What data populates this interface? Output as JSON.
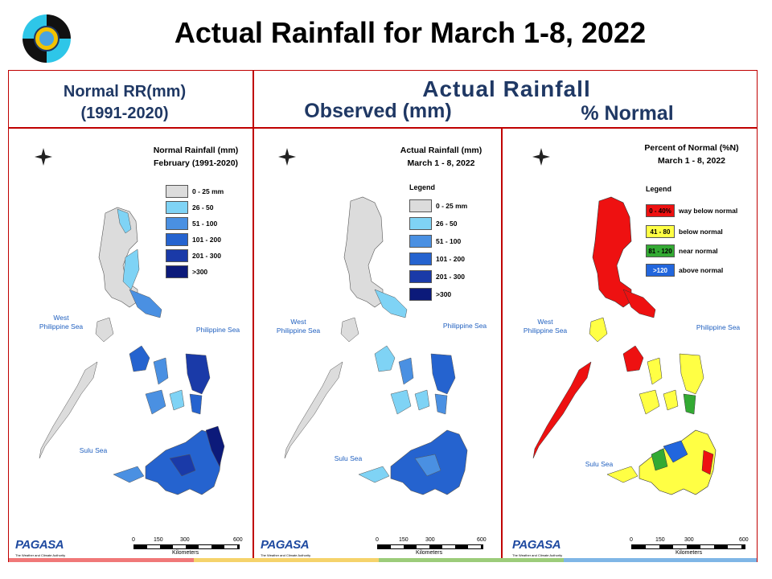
{
  "slide": {
    "title": "Actual Rainfall for March 1-8, 2022",
    "header_left_line1": "Normal RR(mm)",
    "header_left_line2": "(1991-2020)",
    "header_actual": "Actual Rainfall",
    "header_observed": "Observed (mm)",
    "header_percent": "% Normal"
  },
  "colors": {
    "frame": "#c00000",
    "header_text": "#1f3864",
    "sea_label": "#1f5fbf"
  },
  "panels": [
    {
      "title_line1": "Normal Rainfall (mm)",
      "title_line2": "February (1991-2020)",
      "legend_title": "",
      "legend": [
        {
          "label": "0 - 25 mm",
          "color": "#dcdcdc"
        },
        {
          "label": "26 - 50",
          "color": "#7fd3f5"
        },
        {
          "label": "51 - 100",
          "color": "#4a90e2"
        },
        {
          "label": "101 - 200",
          "color": "#2563cf"
        },
        {
          "label": "201 - 300",
          "color": "#1a3aa8"
        },
        {
          "label": ">300",
          "color": "#0c1a7a"
        }
      ]
    },
    {
      "title_line1": "Actual Rainfall (mm)",
      "title_line2": "March 1 - 8, 2022",
      "legend_title": "Legend",
      "legend": [
        {
          "label": "0 - 25 mm",
          "color": "#dcdcdc"
        },
        {
          "label": "26 - 50",
          "color": "#7fd3f5"
        },
        {
          "label": "51 - 100",
          "color": "#4a90e2"
        },
        {
          "label": "101 - 200",
          "color": "#2563cf"
        },
        {
          "label": "201 - 300",
          "color": "#1a3aa8"
        },
        {
          "label": ">300",
          "color": "#0c1a7a"
        }
      ]
    },
    {
      "title_line1": "Percent of Normal (%N)",
      "title_line2": "March 1 - 8, 2022",
      "legend_title": "Legend",
      "legend": [
        {
          "label": "way below normal",
          "swatch": "0 - 40%",
          "color": "#ee1111"
        },
        {
          "label": "below normal",
          "swatch": "41 - 80",
          "color": "#ffff44"
        },
        {
          "label": "near normal",
          "swatch": "81 - 120",
          "color": "#33aa33"
        },
        {
          "label": "above normal",
          "swatch": ">120",
          "color": "#2266dd"
        }
      ]
    }
  ],
  "map_labels": {
    "west_sea_1": "West",
    "west_sea_2": "Philippine Sea",
    "east_sea": "Philippine Sea",
    "sulu": "Sulu Sea",
    "scale_ticks": [
      "0",
      "150",
      "300",
      "600"
    ],
    "scale_unit": "Kilometers",
    "compass": [
      "N",
      "W",
      "E",
      "S"
    ]
  },
  "branding": {
    "agency": "PAGASA",
    "small_top": "DOST",
    "tag": "BEYOND",
    "tagline": "The Weather and Climate Authority"
  }
}
